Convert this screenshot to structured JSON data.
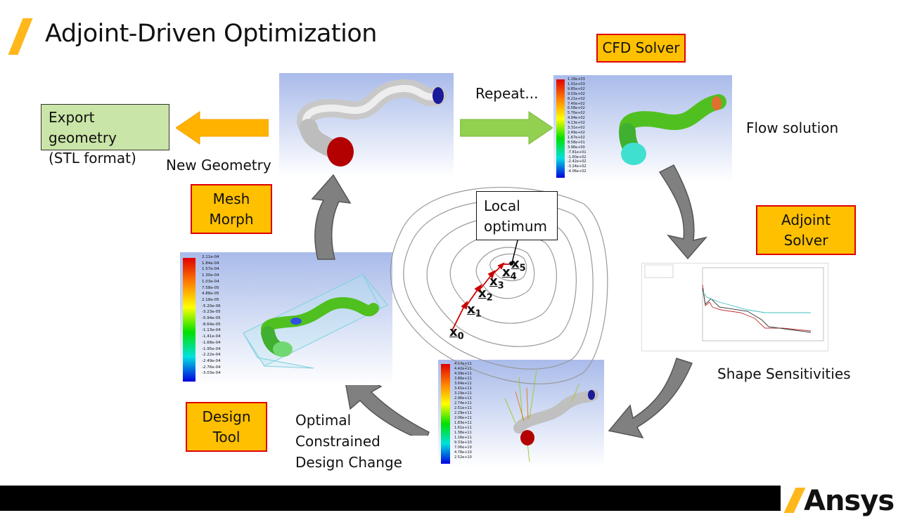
{
  "title": "Adjoint-Driven Optimization",
  "boxes": {
    "cfd_solver": "CFD Solver",
    "adjoint_solver_line1": "Adjoint",
    "adjoint_solver_line2": "Solver",
    "mesh_morph_line1": "Mesh",
    "mesh_morph_line2": "Morph",
    "design_tool_line1": "Design",
    "design_tool_line2": "Tool",
    "export_line1": "Export geometry",
    "export_line2": "(STL format)"
  },
  "labels": {
    "repeat": "Repeat...",
    "flow_solution": "Flow solution",
    "new_geometry": "New Geometry",
    "shape_sensitivities": "Shape Sensitivities",
    "optimal_line1": "Optimal",
    "optimal_line2": "Constrained",
    "optimal_line3": "Design Change",
    "local_optimum_line1": "Local",
    "local_optimum_line2": "optimum"
  },
  "iterates": [
    "x",
    "x",
    "x",
    "x",
    "x",
    "x"
  ],
  "iterate_subs": [
    "0",
    "1",
    "2",
    "3",
    "4",
    "5"
  ],
  "logo": "Ansys",
  "colors": {
    "accent": "#ffb71b",
    "box_fill": "#ffc000",
    "box_border": "#e00000",
    "green_fill": "#c9e5a7",
    "arrow_orange": "#ffb300",
    "arrow_green": "#92d050",
    "iterate_arrow": "#cc0000"
  },
  "legend_values": {
    "cfd": [
      "1.18e+03",
      "1.01e+03",
      "9.85e+02",
      "9.03e+02",
      "8.21e+02",
      "7.40e+02",
      "6.58e+02",
      "5.76e+02",
      "4.94e+02",
      "4.13e+02",
      "3.31e+02",
      "2.49e+02",
      "1.67e+02",
      "8.58e+01",
      "3.98e+00",
      "-7.81e+01",
      "-1.60e+02",
      "-2.42e+02",
      "-3.24e+02",
      "-4.06e+02"
    ],
    "morph": [
      "2.11e-04",
      "1.84e-04",
      "1.57e-04",
      "1.30e-04",
      "1.03e-04",
      "7.58e-05",
      "4.88e-05",
      "2.18e-05",
      "-5.20e-06",
      "-3.23e-05",
      "-5.94e-05",
      "-8.64e-05",
      "-1.13e-04",
      "-1.41e-04",
      "-1.68e-04",
      "-1.95e-04",
      "-2.22e-04",
      "-2.49e-04",
      "-2.76e-04",
      "-3.03e-04"
    ],
    "sens": [
      "4.64e+11",
      "4.42e+11",
      "4.09e+11",
      "3.86e+11",
      "3.64e+11",
      "3.41e+11",
      "3.19e+11",
      "2.96e+11",
      "2.74e+11",
      "2.51e+11",
      "2.29e+11",
      "2.06e+11",
      "1.83e+11",
      "1.61e+11",
      "1.38e+11",
      "1.16e+11",
      "9.33e+10",
      "7.06e+10",
      "4.78e+10",
      "2.52e+10"
    ]
  }
}
